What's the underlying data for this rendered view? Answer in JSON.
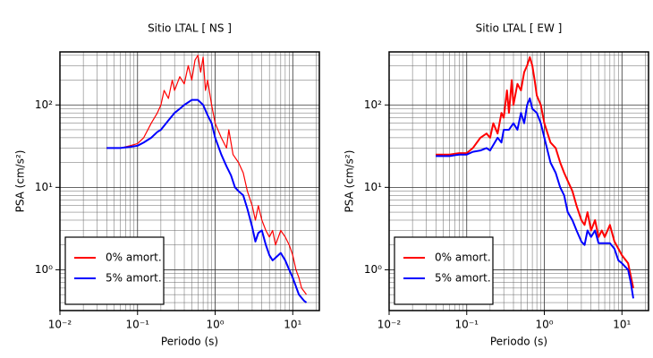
{
  "chart_data": [
    {
      "type": "line",
      "title": "Sitio LTAL [ NS ]",
      "xlabel": "Periodo (s)",
      "ylabel": "PSA (cm/s²)",
      "xscale": "log",
      "yscale": "log",
      "grid": true,
      "minor_grid": true,
      "legend": "lower left",
      "xlim": [
        0.01,
        22
      ],
      "ylim": [
        0.32,
        440
      ],
      "xticks": [
        {
          "value": 0.01,
          "label": "10⁻²"
        },
        {
          "value": 0.1,
          "label": "10⁻¹"
        },
        {
          "value": 1,
          "label": "10⁰"
        },
        {
          "value": 10,
          "label": "10¹"
        }
      ],
      "yticks": [
        {
          "value": 1,
          "label": "10⁰"
        },
        {
          "value": 10,
          "label": "10¹"
        },
        {
          "value": 100,
          "label": "10²"
        }
      ],
      "series": [
        {
          "name": "0% amort.",
          "color": "#ff0000",
          "width": 1.2,
          "x": [
            0.04,
            0.06,
            0.08,
            0.1,
            0.12,
            0.15,
            0.18,
            0.2,
            0.22,
            0.25,
            0.28,
            0.3,
            0.35,
            0.4,
            0.45,
            0.5,
            0.55,
            0.6,
            0.65,
            0.7,
            0.75,
            0.8,
            0.9,
            1.0,
            1.2,
            1.4,
            1.5,
            1.7,
            2.0,
            2.3,
            2.6,
            3.0,
            3.3,
            3.6,
            4.0,
            4.5,
            5.0,
            5.5,
            6.0,
            7.0,
            8.0,
            9.0,
            10,
            11,
            12,
            13,
            15
          ],
          "values": [
            30,
            30,
            32,
            34,
            40,
            60,
            80,
            100,
            150,
            120,
            200,
            150,
            220,
            180,
            300,
            200,
            350,
            400,
            250,
            380,
            150,
            200,
            100,
            60,
            40,
            30,
            50,
            25,
            20,
            15,
            9,
            6,
            4,
            6,
            4,
            3,
            2.5,
            3,
            2,
            3,
            2.5,
            2,
            1.5,
            1,
            0.8,
            0.6,
            0.5
          ]
        },
        {
          "name": "5% amort.",
          "color": "#0000ff",
          "width": 2,
          "x": [
            0.04,
            0.06,
            0.08,
            0.1,
            0.12,
            0.15,
            0.18,
            0.2,
            0.25,
            0.3,
            0.35,
            0.4,
            0.5,
            0.6,
            0.7,
            0.8,
            0.9,
            1.0,
            1.2,
            1.4,
            1.6,
            1.8,
            2.0,
            2.3,
            2.6,
            3.0,
            3.3,
            3.6,
            4.0,
            4.5,
            5.0,
            5.5,
            6.0,
            7.0,
            8.0,
            9.0,
            10,
            12,
            14,
            15
          ],
          "values": [
            30,
            30,
            31,
            32,
            35,
            40,
            47,
            50,
            65,
            80,
            90,
            100,
            115,
            115,
            100,
            75,
            60,
            40,
            25,
            18,
            14,
            10,
            9,
            8,
            5.5,
            3.3,
            2.2,
            2.8,
            3,
            2,
            1.5,
            1.3,
            1.4,
            1.6,
            1.3,
            1.0,
            0.8,
            0.5,
            0.42,
            0.4
          ]
        }
      ]
    },
    {
      "type": "line",
      "title": "Sitio LTAL [ EW ]",
      "xlabel": "Periodo (s)",
      "ylabel": "PSA (cm/s²)",
      "xscale": "log",
      "yscale": "log",
      "grid": true,
      "minor_grid": true,
      "legend": "lower left",
      "xlim": [
        0.01,
        22
      ],
      "ylim": [
        0.32,
        440
      ],
      "xticks": [
        {
          "value": 0.01,
          "label": "10⁻²"
        },
        {
          "value": 0.1,
          "label": "10⁻¹"
        },
        {
          "value": 1,
          "label": "10⁰"
        },
        {
          "value": 10,
          "label": "10¹"
        }
      ],
      "yticks": [
        {
          "value": 1,
          "label": "10⁰"
        },
        {
          "value": 10,
          "label": "10¹"
        },
        {
          "value": 100,
          "label": "10²"
        }
      ],
      "series": [
        {
          "name": "0% amort.",
          "color": "#ff0000",
          "width": 2,
          "x": [
            0.04,
            0.06,
            0.08,
            0.1,
            0.12,
            0.15,
            0.18,
            0.2,
            0.22,
            0.25,
            0.28,
            0.3,
            0.33,
            0.35,
            0.38,
            0.4,
            0.45,
            0.5,
            0.55,
            0.6,
            0.65,
            0.7,
            0.75,
            0.8,
            0.9,
            1.0,
            1.2,
            1.4,
            1.6,
            1.8,
            2.0,
            2.3,
            2.6,
            3.0,
            3.3,
            3.6,
            4.0,
            4.5,
            5.0,
            5.5,
            6.0,
            7.0,
            8.0,
            9.0,
            10,
            12,
            14
          ],
          "values": [
            25,
            25,
            26,
            26,
            30,
            40,
            45,
            40,
            60,
            45,
            80,
            70,
            150,
            80,
            200,
            100,
            180,
            150,
            250,
            300,
            380,
            300,
            200,
            130,
            100,
            60,
            35,
            30,
            20,
            15,
            12,
            9,
            6,
            4,
            3.5,
            5,
            3,
            4,
            2.5,
            3,
            2.5,
            3.5,
            2.2,
            1.8,
            1.5,
            1.2,
            0.6
          ]
        },
        {
          "name": "5% amort.",
          "color": "#0000ff",
          "width": 2,
          "x": [
            0.04,
            0.06,
            0.08,
            0.1,
            0.12,
            0.15,
            0.18,
            0.2,
            0.25,
            0.28,
            0.3,
            0.35,
            0.4,
            0.45,
            0.5,
            0.55,
            0.6,
            0.65,
            0.7,
            0.8,
            0.9,
            1.0,
            1.2,
            1.4,
            1.6,
            1.8,
            2.0,
            2.3,
            2.6,
            3.0,
            3.3,
            3.6,
            4.0,
            4.5,
            5.0,
            6.0,
            7.0,
            8.0,
            9.0,
            10,
            12,
            13,
            14
          ],
          "values": [
            24,
            24,
            25,
            25,
            27,
            28,
            30,
            28,
            40,
            35,
            50,
            50,
            60,
            50,
            80,
            60,
            100,
            120,
            90,
            80,
            60,
            40,
            20,
            15,
            10,
            8,
            5,
            4,
            3,
            2.2,
            2,
            3,
            2.5,
            3,
            2.1,
            2.1,
            2.1,
            1.8,
            1.3,
            1.2,
            1.0,
            0.7,
            0.45
          ]
        }
      ]
    }
  ]
}
